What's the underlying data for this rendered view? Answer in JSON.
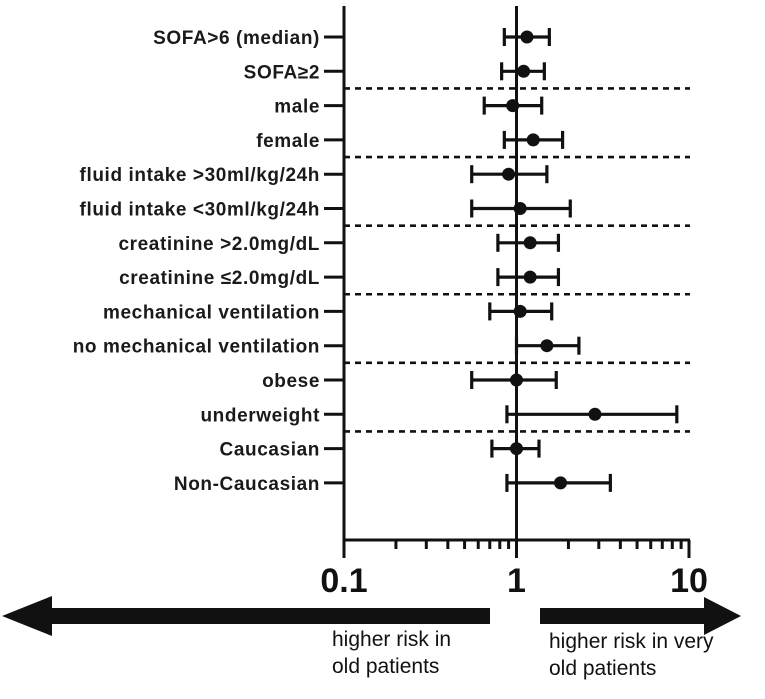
{
  "chart_data": {
    "type": "forest",
    "x_scale": "log",
    "xlim": [
      0.1,
      10
    ],
    "reference_line": 1,
    "x_ticks": [
      "0.1",
      "1",
      "10"
    ],
    "rows": [
      {
        "label": "SOFA>6 (median)",
        "estimate": 1.15,
        "ci_low": 0.85,
        "ci_high": 1.55
      },
      {
        "label": "SOFA≥2",
        "estimate": 1.1,
        "ci_low": 0.82,
        "ci_high": 1.45
      },
      {
        "label": "male",
        "estimate": 0.95,
        "ci_low": 0.65,
        "ci_high": 1.4
      },
      {
        "label": "female",
        "estimate": 1.25,
        "ci_low": 0.85,
        "ci_high": 1.85
      },
      {
        "label": "fluid intake >30ml/kg/24h",
        "estimate": 0.9,
        "ci_low": 0.55,
        "ci_high": 1.5
      },
      {
        "label": "fluid intake <30ml/kg/24h",
        "estimate": 1.05,
        "ci_low": 0.55,
        "ci_high": 2.05
      },
      {
        "label": "creatinine >2.0mg/dL",
        "estimate": 1.2,
        "ci_low": 0.78,
        "ci_high": 1.75
      },
      {
        "label": "creatinine ≤2.0mg/dL",
        "estimate": 1.2,
        "ci_low": 0.78,
        "ci_high": 1.75
      },
      {
        "label": "mechanical ventilation",
        "estimate": 1.05,
        "ci_low": 0.7,
        "ci_high": 1.6
      },
      {
        "label": "no mechanical ventilation",
        "estimate": 1.5,
        "ci_low": 1.0,
        "ci_high": 2.3
      },
      {
        "label": "obese",
        "estimate": 1.0,
        "ci_low": 0.55,
        "ci_high": 1.7
      },
      {
        "label": "underweight",
        "estimate": 2.85,
        "ci_low": 0.88,
        "ci_high": 8.5
      },
      {
        "label": "Caucasian",
        "estimate": 1.0,
        "ci_low": 0.72,
        "ci_high": 1.35
      },
      {
        "label": "Non-Caucasian",
        "estimate": 1.8,
        "ci_low": 0.88,
        "ci_high": 3.5
      }
    ],
    "group_separators_after_row": [
      1,
      3,
      5,
      7,
      9,
      11
    ],
    "arrow_left_label_lines": [
      "higher risk in",
      "old patients"
    ],
    "arrow_right_label_lines": [
      "higher risk in very",
      "old patients"
    ]
  },
  "colors": {
    "ink": "#111111",
    "background": "#ffffff"
  }
}
